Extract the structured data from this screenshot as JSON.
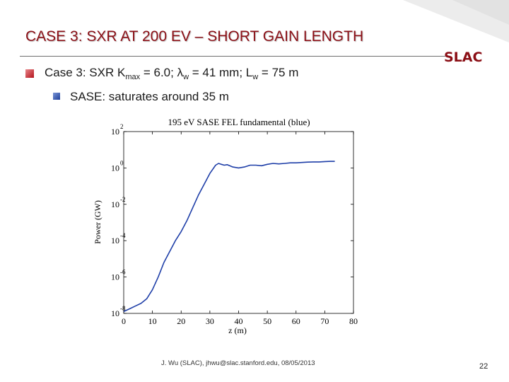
{
  "slide": {
    "title": "CASE 3: SXR AT 200 EV – SHORT GAIN LENGTH",
    "logo_text": "SLAC",
    "bullet1": {
      "pre": "Case 3: SXR K",
      "sub1": "max",
      "mid": " = 6.0; λ",
      "sub2": "w",
      "mid2": " = 41 mm; L",
      "sub3": "w",
      "post": " = 75 m"
    },
    "bullet2": "SASE: saturates around 35 m",
    "footer": "J. Wu (SLAC), jhwu@slac.stanford.edu, 08/05/2013",
    "page_number": "22",
    "colors": {
      "title": "#8b0f16",
      "series": "#1f3fa8",
      "bullet1": "#c0141c",
      "bullet2": "#2a4aa8"
    }
  },
  "chart_data": {
    "type": "line",
    "title": "195 eV SASE FEL fundamental (blue)",
    "xlabel": "z (m)",
    "ylabel": "Power (GW)",
    "xlim": [
      0,
      80
    ],
    "ylim_log10": [
      -8,
      2
    ],
    "log_y": true,
    "x_ticks": [
      "0",
      "10",
      "20",
      "30",
      "40",
      "50",
      "60",
      "70",
      "80"
    ],
    "y_ticks": [
      {
        "base": "10",
        "exp": "2"
      },
      {
        "base": "10",
        "exp": "0"
      },
      {
        "base": "10",
        "exp": "-2"
      },
      {
        "base": "10",
        "exp": "-4"
      },
      {
        "base": "10",
        "exp": "-6"
      },
      {
        "base": "10",
        "exp": "-8"
      }
    ],
    "grid": false,
    "series": [
      {
        "color": "#1f3fa8",
        "x": [
          0,
          2,
          4,
          6,
          8,
          10,
          12,
          14,
          16,
          18,
          20,
          22,
          24,
          26,
          28,
          30,
          32,
          33,
          34,
          35,
          36,
          38,
          40,
          42,
          44,
          46,
          48,
          50,
          52,
          54,
          56,
          58,
          60,
          62,
          64,
          66,
          68,
          70,
          72,
          73.5
        ],
        "log10_y": [
          -7.9,
          -7.75,
          -7.6,
          -7.45,
          -7.2,
          -6.7,
          -6.0,
          -5.2,
          -4.6,
          -4.0,
          -3.5,
          -2.9,
          -2.2,
          -1.5,
          -0.9,
          -0.3,
          0.15,
          0.25,
          0.2,
          0.15,
          0.18,
          0.05,
          0.0,
          0.05,
          0.15,
          0.15,
          0.12,
          0.2,
          0.25,
          0.22,
          0.25,
          0.28,
          0.28,
          0.3,
          0.32,
          0.33,
          0.33,
          0.35,
          0.36,
          0.36
        ]
      }
    ]
  }
}
